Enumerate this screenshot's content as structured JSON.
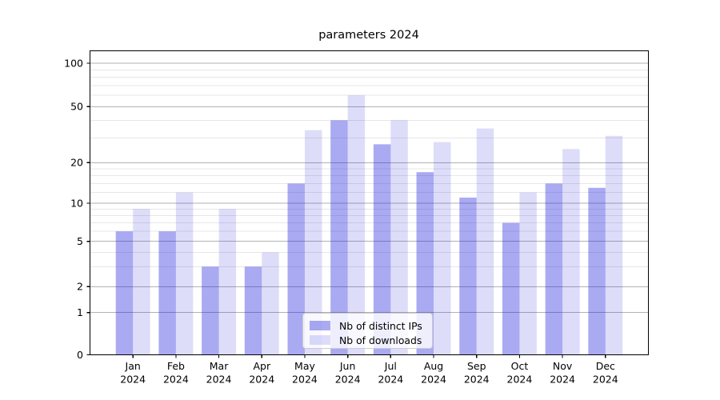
{
  "chart_data": {
    "type": "bar",
    "title": "parameters 2024",
    "categories": [
      "Jan",
      "Feb",
      "Mar",
      "Apr",
      "May",
      "Jun",
      "Jul",
      "Aug",
      "Sep",
      "Oct",
      "Nov",
      "Dec"
    ],
    "category_year_line": "2024",
    "series": [
      {
        "name": "Nb of distinct IPs",
        "color": "rgba(25,25,220,0.37)",
        "values": [
          6,
          6,
          3,
          3,
          14,
          40,
          27,
          17,
          11,
          7,
          14,
          13
        ]
      },
      {
        "name": "Nb of downloads",
        "color": "rgba(25,25,220,0.15)",
        "values": [
          9,
          12,
          9,
          4,
          34,
          60,
          40,
          28,
          35,
          12,
          25,
          31
        ]
      }
    ],
    "y_axis": {
      "scale": "symlog-like",
      "major_ticks": [
        0,
        1,
        2,
        5,
        10,
        20,
        50,
        100
      ],
      "minor_ticks": [
        3,
        4,
        6,
        7,
        8,
        9,
        12,
        14,
        16,
        18,
        30,
        40,
        60,
        70,
        80,
        90
      ]
    },
    "legend": {
      "position": "lower center"
    },
    "grid": true,
    "colors": {
      "grid_major": "#b2b2b2",
      "grid_minor": "#e7e7e7",
      "axis": "#000000",
      "text": "#000000"
    }
  }
}
